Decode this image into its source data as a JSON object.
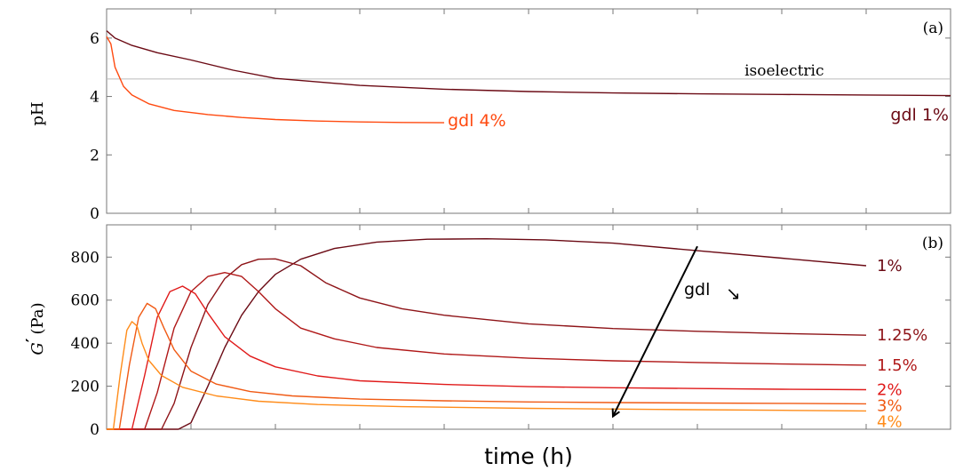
{
  "chart_data": [
    {
      "type": "line",
      "panel_label": "(a)",
      "ylabel": "pH",
      "ylim": [
        0,
        7
      ],
      "yticks": [
        0,
        2,
        4,
        6
      ],
      "xlim": [
        0,
        10
      ],
      "x_tick_count": 10,
      "x_ticklabels_shown": false,
      "reference_line": {
        "y": 4.6,
        "label": "isoelectric",
        "color": "#bbbbbb"
      },
      "series": [
        {
          "name": "gdl 1%",
          "color": "#6b0a14",
          "x": [
            0,
            0.1,
            0.3,
            0.6,
            1.0,
            1.5,
            2.0,
            3.0,
            4.0,
            5.0,
            6.0,
            7.0,
            8.0,
            9.0,
            10.0
          ],
          "y": [
            6.25,
            6.0,
            5.75,
            5.5,
            5.25,
            4.9,
            4.62,
            4.38,
            4.25,
            4.17,
            4.12,
            4.09,
            4.07,
            4.05,
            4.03
          ]
        },
        {
          "name": "gdl 4%",
          "color": "#ff4a10",
          "x": [
            0,
            0.05,
            0.1,
            0.2,
            0.3,
            0.5,
            0.8,
            1.2,
            1.6,
            2.0,
            2.5,
            3.0,
            3.5,
            4.0
          ],
          "y": [
            6.05,
            5.8,
            5.0,
            4.35,
            4.05,
            3.75,
            3.52,
            3.38,
            3.28,
            3.21,
            3.16,
            3.13,
            3.11,
            3.1
          ]
        }
      ]
    },
    {
      "type": "line",
      "panel_label": "(b)",
      "ylabel": "G' (Pa)",
      "ylabel_symbol": "G",
      "ylabel_prime": "′",
      "ylabel_unit": "(Pa)",
      "ylim": [
        0,
        950
      ],
      "yticks": [
        0,
        200,
        400,
        600,
        800
      ],
      "xlim": [
        0,
        10
      ],
      "x_tick_count": 10,
      "x_ticklabels_shown": false,
      "xlabel": "time (h)",
      "arrow_annotation": {
        "label": "gdl",
        "glyph": "↘",
        "from": [
          7,
          850
        ],
        "to": [
          6,
          60
        ]
      },
      "series": [
        {
          "name": "1%",
          "color": "#6b0a14",
          "x": [
            0,
            0.85,
            1.0,
            1.2,
            1.4,
            1.6,
            1.8,
            2.0,
            2.3,
            2.7,
            3.2,
            3.8,
            4.5,
            5.2,
            6.0,
            7.0,
            8.0,
            9.0
          ],
          "y": [
            0,
            0,
            30,
            200,
            380,
            530,
            640,
            720,
            790,
            840,
            870,
            883,
            885,
            880,
            865,
            830,
            795,
            760
          ]
        },
        {
          "name": "1.25%",
          "color": "#8e1418",
          "x": [
            0,
            0.65,
            0.8,
            1.0,
            1.2,
            1.4,
            1.6,
            1.8,
            2.0,
            2.3,
            2.6,
            3.0,
            3.5,
            4.0,
            5.0,
            6.0,
            7.0,
            8.0,
            9.0
          ],
          "y": [
            0,
            0,
            120,
            380,
            580,
            700,
            765,
            790,
            792,
            760,
            680,
            610,
            560,
            530,
            490,
            468,
            455,
            445,
            437
          ]
        },
        {
          "name": "1.5%",
          "color": "#b01818",
          "x": [
            0,
            0.45,
            0.6,
            0.8,
            1.0,
            1.2,
            1.4,
            1.6,
            1.8,
            2.0,
            2.3,
            2.7,
            3.2,
            4.0,
            5.0,
            6.0,
            7.0,
            8.0,
            9.0
          ],
          "y": [
            0,
            0,
            170,
            470,
            640,
            710,
            728,
            710,
            640,
            560,
            470,
            420,
            380,
            350,
            330,
            318,
            310,
            303,
            298
          ]
        },
        {
          "name": "2%",
          "color": "#e01a1a",
          "x": [
            0,
            0.3,
            0.45,
            0.6,
            0.75,
            0.9,
            1.05,
            1.2,
            1.4,
            1.7,
            2.0,
            2.5,
            3.0,
            4.0,
            5.0,
            6.0,
            7.0,
            8.0,
            9.0
          ],
          "y": [
            0,
            0,
            250,
            520,
            640,
            665,
            630,
            540,
            430,
            340,
            290,
            248,
            225,
            208,
            198,
            193,
            189,
            186,
            184
          ]
        },
        {
          "name": "3%",
          "color": "#f05a14",
          "x": [
            0,
            0.15,
            0.27,
            0.38,
            0.48,
            0.58,
            0.68,
            0.8,
            1.0,
            1.3,
            1.7,
            2.2,
            3.0,
            4.0,
            5.0,
            6.0,
            7.0,
            8.0,
            9.0
          ],
          "y": [
            0,
            0,
            300,
            520,
            585,
            560,
            470,
            370,
            270,
            210,
            175,
            155,
            140,
            132,
            127,
            124,
            122,
            120,
            118
          ]
        },
        {
          "name": "4%",
          "color": "#ff8c1a",
          "x": [
            0,
            0.08,
            0.16,
            0.24,
            0.3,
            0.36,
            0.42,
            0.5,
            0.65,
            0.9,
            1.3,
            1.8,
            2.5,
            3.5,
            5.0,
            6.5,
            8.0,
            9.0
          ],
          "y": [
            0,
            0,
            250,
            460,
            500,
            480,
            400,
            320,
            250,
            195,
            155,
            130,
            115,
            105,
            97,
            92,
            88,
            85
          ]
        }
      ]
    }
  ]
}
